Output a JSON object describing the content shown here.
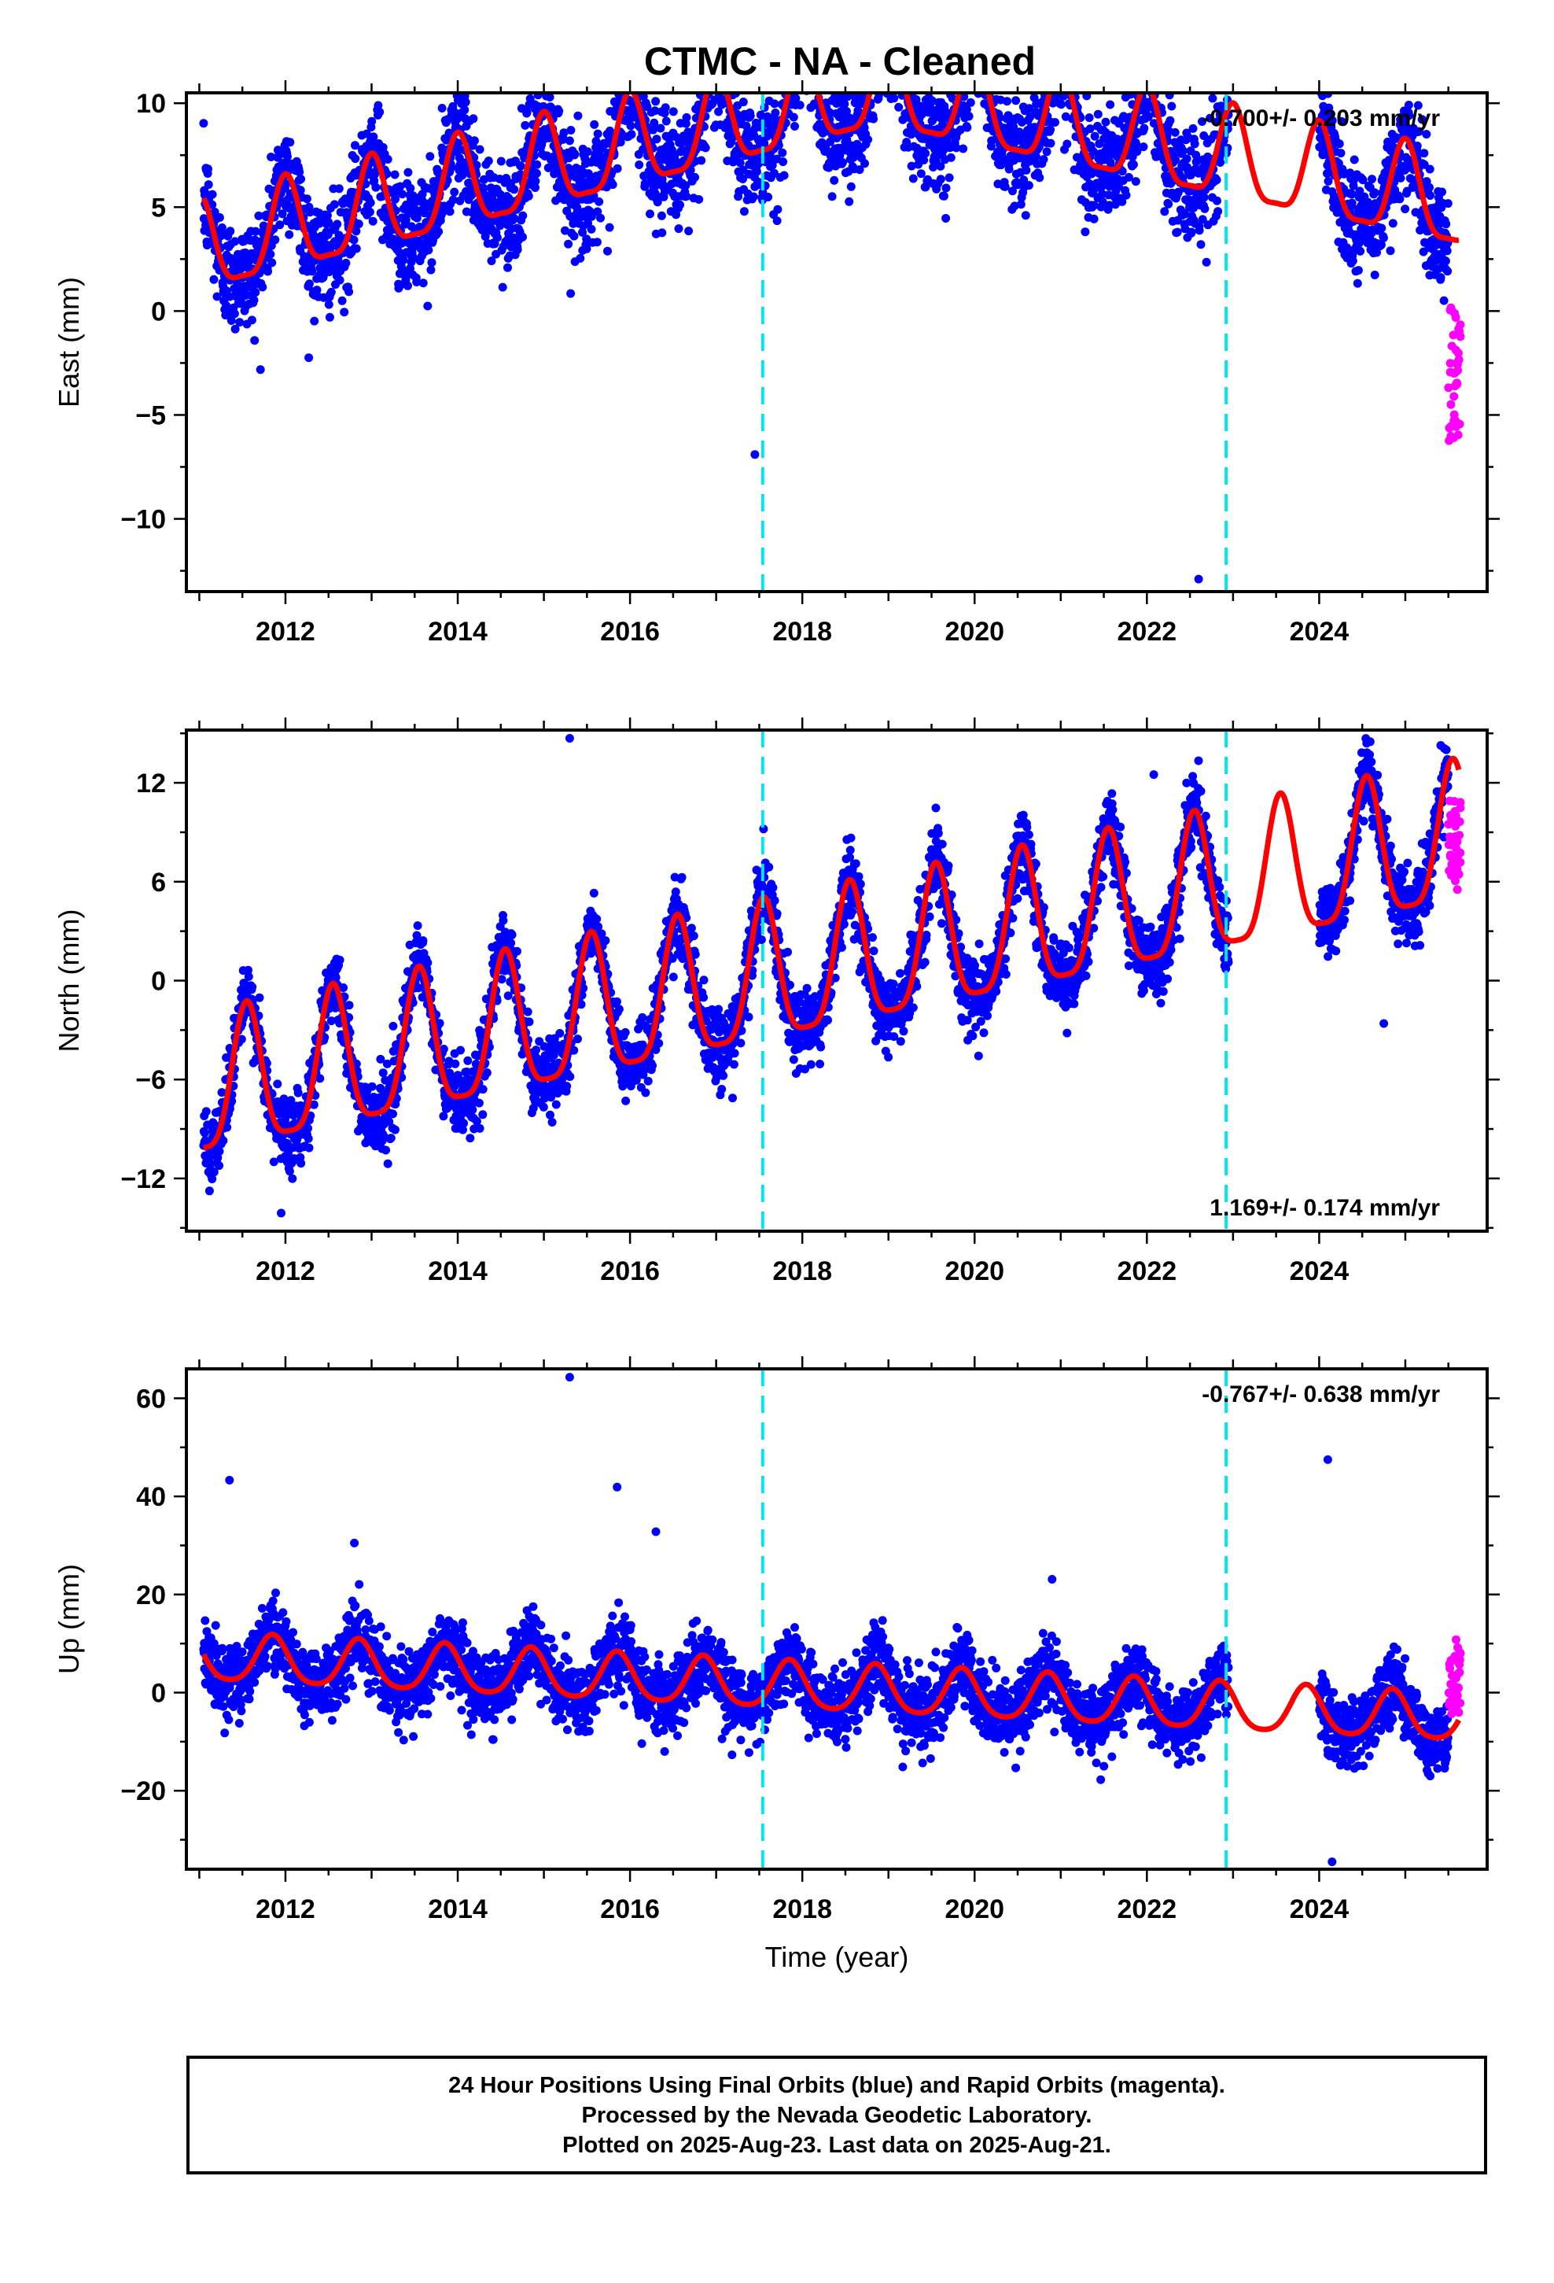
{
  "figure_title": "CTMC  - NA - Cleaned",
  "xlabel": "Time (year)",
  "caption": [
    "24 Hour Positions Using Final Orbits (blue) and Rapid Orbits (magenta).",
    "Processed by the Nevada Geodetic Laboratory.",
    "Plotted on 2025-Aug-23. Last data on 2025-Aug-21."
  ],
  "colors": {
    "final_orbits": "#0000ff",
    "rapid_orbits": "#ff00ff",
    "model_fit": "#ff0000",
    "breaks": "#00e5ee"
  },
  "chart_data": [
    {
      "type": "scatter",
      "name": "east",
      "ylabel": "East (mm)",
      "rate_text": "-0.700+/- 0.203 mm/yr",
      "rate_position": "top-right",
      "xlim": [
        2010.85,
        2025.95
      ],
      "ylim": [
        -13.5,
        10.5
      ],
      "yticks": [
        10,
        5,
        0,
        -5,
        -10
      ],
      "xticks": [
        2012,
        2014,
        2016,
        2018,
        2020,
        2022,
        2024
      ],
      "breaks": [
        2017.54,
        2022.92
      ],
      "gaps": [
        [
          2022.95,
          2024.0
        ]
      ],
      "final_end": 2025.5,
      "rapid_range": [
        2025.5,
        2025.64
      ],
      "model": {
        "b0": 2.8,
        "b1": 1.0,
        "t_break": 2018.9,
        "slope_after": -0.85,
        "ann_amp": 2.2,
        "ann_peak": 2012.0,
        "semi_amp": 0.6,
        "noise": 1.3
      },
      "rapid_values": [
        -6.5,
        0.2
      ],
      "outliers": [
        [
          2018.05,
          10.6
        ],
        [
          2018.2,
          9.0
        ],
        [
          2017.45,
          -6.9
        ],
        [
          2022.6,
          -12.9
        ]
      ],
      "grid": false,
      "legend": "none"
    },
    {
      "type": "scatter",
      "name": "north",
      "ylabel": "North (mm)",
      "rate_text": "1.169+/- 0.174 mm/yr",
      "rate_position": "bottom-right",
      "xlim": [
        2010.85,
        2025.95
      ],
      "ylim": [
        -15.2,
        15.2
      ],
      "yticks": [
        12,
        6,
        0,
        -6,
        -12
      ],
      "xticks": [
        2012,
        2014,
        2016,
        2018,
        2020,
        2022,
        2024
      ],
      "breaks": [
        2017.54,
        2022.92
      ],
      "gaps": [
        [
          2022.95,
          2024.0
        ]
      ],
      "final_end": 2025.5,
      "rapid_range": [
        2025.5,
        2025.64
      ],
      "model": {
        "b0": -7.0,
        "b1": 1.05,
        "t_break": 2100.0,
        "slope_after": 0,
        "ann_amp": 4.2,
        "ann_peak": 2011.55,
        "semi_amp": 1.0,
        "noise": 1.1
      },
      "rapid_values": [
        5.5,
        11.3
      ],
      "outliers": [
        [
          2015.3,
          14.7
        ],
        [
          2022.08,
          12.5
        ],
        [
          2017.55,
          9.2
        ],
        [
          2024.75,
          -2.6
        ],
        [
          2011.95,
          -14.1
        ]
      ],
      "grid": false,
      "legend": "none"
    },
    {
      "type": "scatter",
      "name": "up",
      "ylabel": "Up (mm)",
      "rate_text": "-0.767+/- 0.638 mm/yr",
      "rate_position": "top-right",
      "xlim": [
        2010.85,
        2025.95
      ],
      "ylim": [
        -36,
        66
      ],
      "yticks": [
        60,
        40,
        20,
        0,
        -20
      ],
      "xticks": [
        2012,
        2014,
        2016,
        2018,
        2020,
        2022,
        2024
      ],
      "breaks": [
        2017.54,
        2022.92
      ],
      "gaps": [
        [
          2022.95,
          2024.0
        ]
      ],
      "final_end": 2025.5,
      "rapid_range": [
        2025.5,
        2025.64
      ],
      "model": {
        "b0": 7.0,
        "b1": -0.85,
        "t_break": 2100.0,
        "slope_after": 0,
        "ann_amp": 4.8,
        "ann_peak": 2011.85,
        "semi_amp": 0.8,
        "noise": 3.6
      },
      "rapid_values": [
        -5,
        11
      ],
      "outliers": [
        [
          2011.35,
          43.3
        ],
        [
          2015.3,
          64.3
        ],
        [
          2015.85,
          41.9
        ],
        [
          2016.3,
          32.8
        ],
        [
          2024.1,
          47.5
        ],
        [
          2024.15,
          -34.5
        ],
        [
          2012.8,
          30.5
        ],
        [
          2020.9,
          23.1
        ]
      ],
      "grid": false,
      "legend": "none"
    }
  ]
}
